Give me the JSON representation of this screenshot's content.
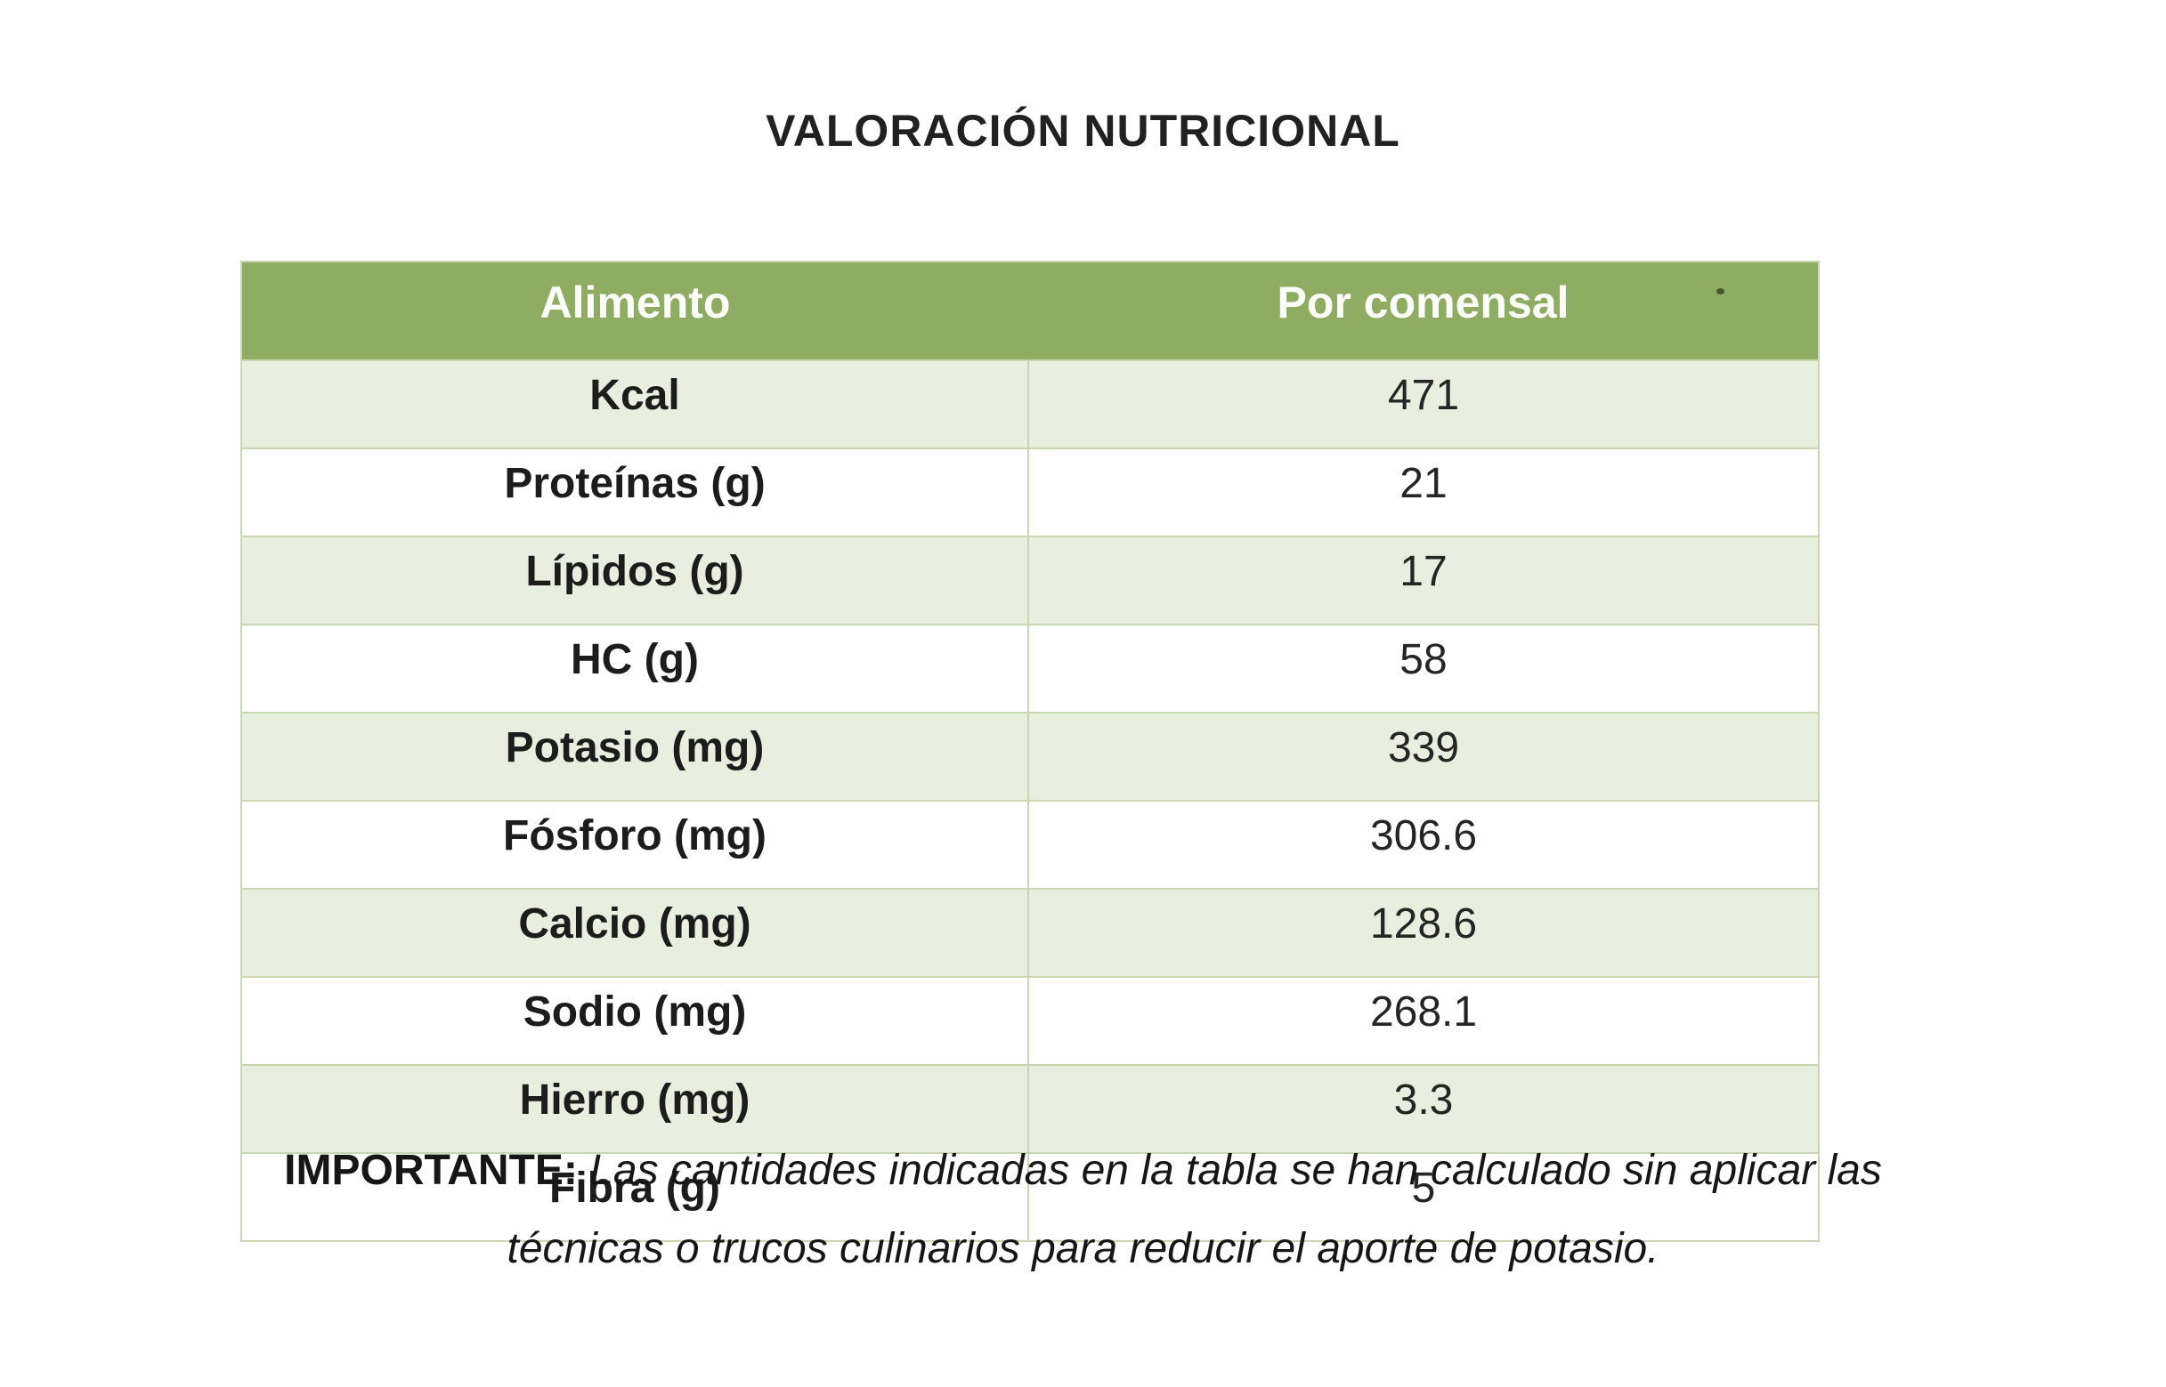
{
  "document": {
    "title": "VALORACIÓN NUTRICIONAL"
  },
  "table": {
    "headers": [
      "Alimento",
      "Por comensal"
    ],
    "rows": [
      {
        "label": "Kcal",
        "value": "471"
      },
      {
        "label": "Proteínas (g)",
        "value": "21"
      },
      {
        "label": "Lípidos (g)",
        "value": "17"
      },
      {
        "label": "HC (g)",
        "value": "58"
      },
      {
        "label": "Potasio (mg)",
        "value": "339"
      },
      {
        "label": "Fósforo (mg)",
        "value": "306.6"
      },
      {
        "label": "Calcio (mg)",
        "value": "128.6"
      },
      {
        "label": "Sodio (mg)",
        "value": "268.1"
      },
      {
        "label": "Hierro (mg)",
        "value": "3.3"
      },
      {
        "label": "Fibra (g)",
        "value": "5"
      }
    ]
  },
  "note": {
    "prefix": "IMPORTANTE:",
    "line1": "Las cantidades indicadas en la tabla se han calculado sin aplicar las",
    "line2": "técnicas o trucos culinarios para reducir el aporte de potasio."
  },
  "colors": {
    "header_bg": "#8FAC63",
    "header_text": "#fdfdf9",
    "row_alt_bg": "#E9EFDF"
  }
}
